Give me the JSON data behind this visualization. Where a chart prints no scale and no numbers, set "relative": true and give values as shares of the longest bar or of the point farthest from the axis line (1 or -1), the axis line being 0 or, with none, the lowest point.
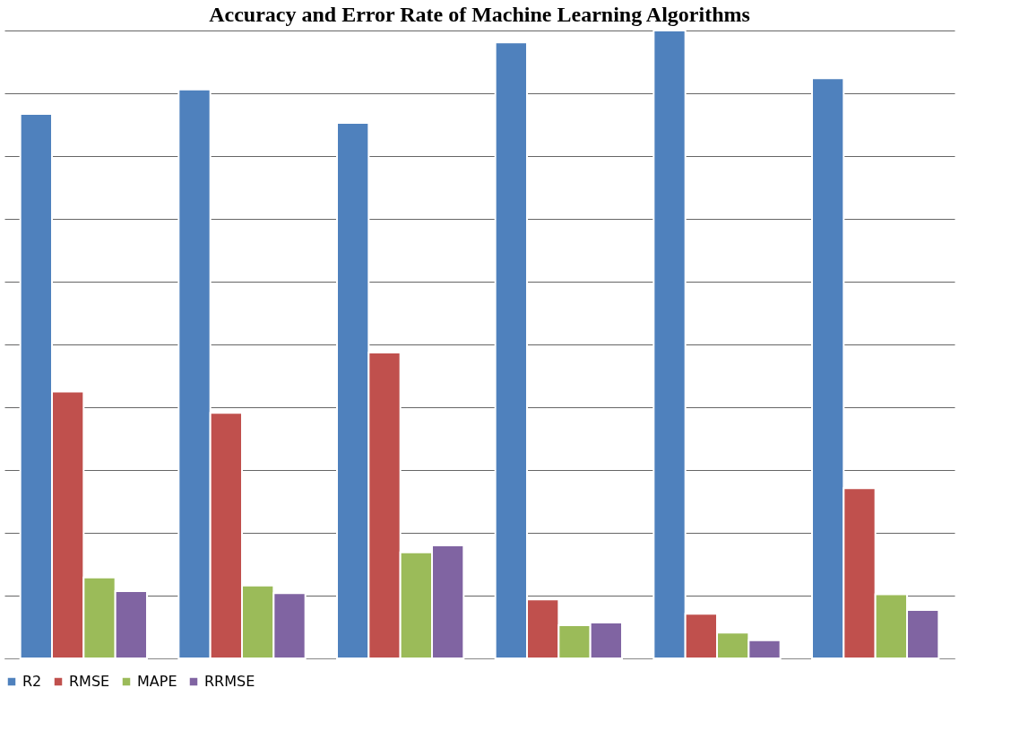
{
  "chart_data": {
    "type": "bar",
    "title": "Accuracy and Error Rate of Machine Learning Algorithms",
    "relative": true,
    "categories": [
      null,
      null,
      null,
      null,
      null,
      null
    ],
    "series": [
      {
        "name": "R2",
        "color": "#4f81bd",
        "values": [
          0.867,
          0.906,
          0.853,
          0.981,
          1,
          0.924
        ]
      },
      {
        "name": "RMSE",
        "color": "#c0504d",
        "values": [
          0.425,
          0.391,
          0.487,
          0.094,
          0.071,
          0.271
        ]
      },
      {
        "name": "MAPE",
        "color": "#9bbb59",
        "values": [
          0.129,
          0.116,
          0.169,
          0.053,
          0.041,
          0.102
        ]
      },
      {
        "name": "RRMSE",
        "color": "#8064a2",
        "values": [
          0.107,
          0.104,
          0.18,
          0.057,
          0.029,
          0.077
        ]
      }
    ],
    "grid": "y",
    "legend": "bottom"
  }
}
